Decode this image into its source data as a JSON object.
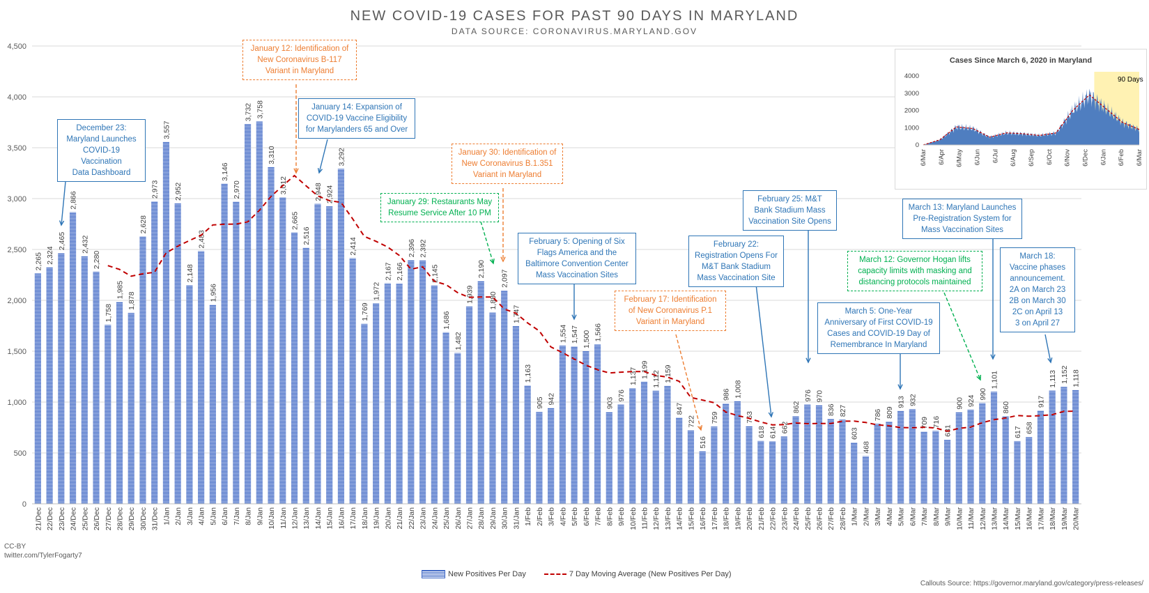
{
  "chart_data": {
    "type": "bar",
    "title": "NEW COVID-19 CASES FOR PAST 90 DAYS IN MARYLAND",
    "subtitle": "DATA SOURCE: CORONAVIRUS.MARYLAND.GOV",
    "ylim": [
      0,
      4500
    ],
    "yticks": [
      "0",
      "500",
      "1,000",
      "1,500",
      "2,000",
      "2,500",
      "3,000",
      "3,500",
      "4,000",
      "4,500"
    ],
    "grid": true,
    "categories": [
      "21/Dec",
      "22/Dec",
      "23/Dec",
      "24/Dec",
      "25/Dec",
      "26/Dec",
      "27/Dec",
      "28/Dec",
      "29/Dec",
      "30/Dec",
      "31/Dec",
      "1/Jan",
      "2/Jan",
      "3/Jan",
      "4/Jan",
      "5/Jan",
      "6/Jan",
      "7/Jan",
      "8/Jan",
      "9/Jan",
      "10/Jan",
      "11/Jan",
      "12/Jan",
      "13/Jan",
      "14/Jan",
      "15/Jan",
      "16/Jan",
      "17/Jan",
      "18/Jan",
      "19/Jan",
      "20/Jan",
      "21/Jan",
      "22/Jan",
      "23/Jan",
      "24/Jan",
      "25/Jan",
      "26/Jan",
      "27/Jan",
      "28/Jan",
      "29/Jan",
      "30/Jan",
      "31/Jan",
      "1/Feb",
      "2/Feb",
      "3/Feb",
      "4/Feb",
      "5/Feb",
      "6/Feb",
      "7/Feb",
      "8/Feb",
      "9/Feb",
      "10/Feb",
      "11/Feb",
      "12/Feb",
      "13/Feb",
      "14/Feb",
      "15/Feb",
      "16/Feb",
      "17/Feb",
      "18/Feb",
      "19/Feb",
      "20/Feb",
      "21/Feb",
      "22/Feb",
      "23/Feb",
      "24/Feb",
      "25/Feb",
      "26/Feb",
      "27/Feb",
      "28/Feb",
      "1/Mar",
      "2/Mar",
      "3/Mar",
      "4/Mar",
      "5/Mar",
      "6/Mar",
      "7/Mar",
      "8/Mar",
      "9/Mar",
      "10/Mar",
      "11/Mar",
      "12/Mar",
      "13/Mar",
      "14/Mar",
      "15/Mar",
      "16/Mar",
      "17/Mar",
      "18/Mar",
      "19/Mar",
      "20/Mar"
    ],
    "series": [
      {
        "name": "New Positives Per Day",
        "color": "#3f68c5",
        "values": [
          2265,
          2324,
          2465,
          2866,
          2432,
          2280,
          1758,
          1985,
          1878,
          2628,
          2973,
          3557,
          2952,
          2148,
          2483,
          1956,
          3146,
          2970,
          3732,
          3758,
          3310,
          3012,
          2665,
          2516,
          2948,
          2924,
          3292,
          2414,
          1769,
          1972,
          2167,
          2166,
          2396,
          2392,
          2145,
          1686,
          1482,
          1939,
          2190,
          1880,
          2097,
          1747,
          1163,
          905,
          942,
          1554,
          1547,
          1500,
          1566,
          903,
          976,
          1137,
          1199,
          1112,
          1159,
          847,
          722,
          516,
          759,
          986,
          1008,
          763,
          618,
          614,
          662,
          862,
          976,
          970,
          836,
          827,
          603,
          468,
          786,
          809,
          913,
          932,
          709,
          716,
          631,
          900,
          924,
          990,
          1101,
          860,
          617,
          658,
          917,
          1113,
          1152,
          1118
        ]
      },
      {
        "name": "7 Day Moving Average (New Positives Per Day)",
        "color": "#c00000",
        "values": [
          null,
          null,
          null,
          null,
          null,
          null,
          2341,
          2304,
          2238,
          2261,
          2276,
          2466,
          2533,
          2588,
          2640,
          2741,
          2748,
          2749,
          2772,
          2885,
          3021,
          3127,
          3226,
          3126,
          3026,
          2980,
          2962,
          2800,
          2628,
          2580,
          2524,
          2441,
          2306,
          2330,
          2186,
          2155,
          2075,
          2029,
          2033,
          2033,
          1915,
          1873,
          1778,
          1699,
          1542,
          1485,
          1423,
          1363,
          1318,
          1286,
          1294,
          1300,
          1300,
          1262,
          1245,
          1204,
          1045,
          1020,
          994,
          902,
          868,
          840,
          804,
          776,
          778,
          795,
          787,
          790,
          790,
          812,
          813,
          799,
          776,
          767,
          749,
          747,
          753,
          745,
          713,
          742,
          754,
          798,
          827,
          843,
          868,
          861,
          867,
          876,
          909,
          911
        ]
      }
    ],
    "data_labels": [
      "2,265",
      "2,324",
      "2,465",
      "2,866",
      "2,432",
      "2,280",
      "1,758",
      "1,985",
      "1,878",
      "2,628",
      "2,973",
      "3,557",
      "2,952",
      "2,148",
      "2,483",
      "1,956",
      "3,146",
      "2,970",
      "3,732",
      "3,758",
      "3,310",
      "3,012",
      "2,665",
      "2,516",
      "2,948",
      "2,924",
      "3,292",
      "2,414",
      "1,769",
      "1,972",
      "2,167",
      "2,166",
      "2,396",
      "2,392",
      "2,145",
      "1,686",
      "1,482",
      "1,939",
      "2,190",
      "1,880",
      "2,097",
      "1,747",
      "1,163",
      "905",
      "942",
      "1,554",
      "1,547",
      "1,500",
      "1,566",
      "903",
      "976",
      "1,137",
      "1,199",
      "1,112",
      "1,159",
      "847",
      "722",
      "516",
      "759",
      "986",
      "1,008",
      "763",
      "618",
      "614",
      "662",
      "862",
      "976",
      "970",
      "836",
      "827",
      "603",
      "468",
      "786",
      "809",
      "913",
      "932",
      "709",
      "716",
      "631",
      "900",
      "924",
      "990",
      "1,101",
      "860",
      "617",
      "658",
      "917",
      "1,113",
      "1,152",
      "1,118"
    ],
    "legend_placement": "bottom"
  },
  "inset_chart": {
    "type": "bar",
    "title": "Cases Since March 6, 2020 in Maryland",
    "ylim": [
      0,
      4000
    ],
    "yticks": [
      "0",
      "1000",
      "2000",
      "3000",
      "4000"
    ],
    "xticks": [
      "6/Mar",
      "6/Apr",
      "6/May",
      "6/Jun",
      "6/Jul",
      "6/Aug",
      "6/Sep",
      "6/Oct",
      "6/Nov",
      "6/Dec",
      "6/Jan",
      "6/Feb",
      "6/Mar"
    ],
    "highlight_label": "90 Days",
    "monthly_approx": [
      0,
      300,
      1050,
      950,
      450,
      700,
      650,
      550,
      700,
      2000,
      2900,
      2100,
      1300,
      900
    ],
    "highlight_color": "#fff2b3"
  },
  "callouts": [
    {
      "text": "December 23:\nMaryland Launches\nCOVID-19 Vaccination\nData Dashboard",
      "style": "blue"
    },
    {
      "text": "January 12: Identification of\nNew Coronavirus B-117\nVariant in Maryland",
      "style": "orange"
    },
    {
      "text": "January 14: Expansion of\nCOVID-19 Vaccine Eligibility\nfor Marylanders 65 and Over",
      "style": "blue"
    },
    {
      "text": "January 30: Identification of\nNew Coronavirus B.1.351\nVariant in Maryland",
      "style": "orange"
    },
    {
      "text": "January 29: Restaurants May\nResume Service After 10 PM",
      "style": "green"
    },
    {
      "text": "February 5: Opening of Six\nFlags America and the\nBaltimore Convention Center\nMass Vaccination Sites",
      "style": "blue"
    },
    {
      "text": "February 17: Identification\nof New Coronavirus P.1\nVariant in Maryland",
      "style": "orange"
    },
    {
      "text": "February 22:\nRegistration Opens For\nM&T Bank Stadium\nMass Vaccination Site",
      "style": "blue"
    },
    {
      "text": "February 25: M&T\nBank Stadium Mass\nVaccination Site Opens",
      "style": "blue"
    },
    {
      "text": "March 13: Maryland Launches\nPre-Registration System for\nMass Vaccination Sites",
      "style": "blue"
    },
    {
      "text": "March 12: Governor Hogan lifts\ncapacity limits with masking and\ndistancing protocols maintained",
      "style": "green"
    },
    {
      "text": "March 5: One-Year\nAnniversary of First COVID-19\nCases and COVID-19 Day of\nRemembrance In Maryland",
      "style": "blue"
    },
    {
      "text": "March 18:\nVaccine phases\nannouncement.\n2A on March 23\n2B on March 30\n2C on April 13\n3 on April 27",
      "style": "blue"
    }
  ],
  "footer": {
    "license": "CC-BY",
    "author": "twitter.com/TylerFogarty7",
    "source": "Callouts Source: https://governor.maryland.gov/category/press-releases/"
  }
}
